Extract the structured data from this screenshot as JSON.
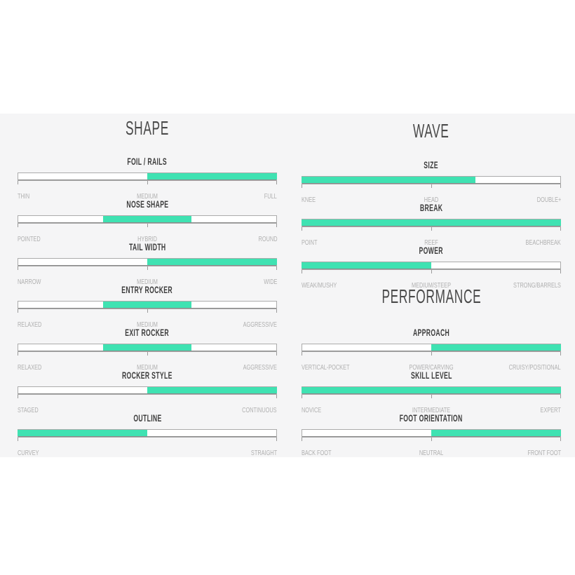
{
  "colors": {
    "accent_fill": "#3fe2b2",
    "bar_outline": "#ababab",
    "bar_bottom_edge": "#8a8a8a",
    "band_background": "#f5f5f6",
    "page_background": "#ffffff",
    "heading_text": "#4a4a4a",
    "slider_title_text": "#3d3d3d",
    "scale_label_text": "#b0b0b0"
  },
  "chart_data": {
    "type": "bar",
    "legend": "none",
    "value_format": "percent of scale, [start,end]",
    "groups": [
      {
        "heading": "SHAPE",
        "sliders": [
          {
            "label": "FOIL / RAILS",
            "scale": [
              "THIN",
              "MEDIUM",
              "FULL"
            ],
            "range_pct": [
              50,
              100
            ]
          },
          {
            "label": "NOSE SHAPE",
            "scale": [
              "POINTED",
              "HYBRID",
              "ROUND"
            ],
            "range_pct": [
              33,
              67
            ]
          },
          {
            "label": "TAIL WIDTH",
            "scale": [
              "NARROW",
              "MEDIUM",
              "WIDE"
            ],
            "range_pct": [
              50,
              100
            ]
          },
          {
            "label": "ENTRY ROCKER",
            "scale": [
              "RELAXED",
              "MEDIUM",
              "AGGRESSIVE"
            ],
            "range_pct": [
              33,
              67
            ]
          },
          {
            "label": "EXIT ROCKER",
            "scale": [
              "RELAXED",
              "MEDIUM",
              "AGGRESSIVE"
            ],
            "range_pct": [
              33,
              67
            ]
          },
          {
            "label": "ROCKER STYLE",
            "scale": [
              "STAGED",
              "CONTINUOUS"
            ],
            "range_pct": [
              50,
              100
            ]
          },
          {
            "label": "OUTLINE",
            "scale": [
              "CURVEY",
              "STRAIGHT"
            ],
            "range_pct": [
              0,
              50
            ]
          }
        ]
      },
      {
        "heading": "WAVE",
        "sliders": [
          {
            "label": "SIZE",
            "scale": [
              "KNEE",
              "HEAD",
              "DOUBLE+"
            ],
            "range_pct": [
              0,
              67
            ]
          },
          {
            "label": "BREAK",
            "scale": [
              "POINT",
              "REEF",
              "BEACHBREAK"
            ],
            "range_pct": [
              0,
              100
            ]
          },
          {
            "label": "POWER",
            "scale": [
              "WEAK/MUSHY",
              "MEDIUM/STEEP",
              "STRONG/BARRELS"
            ],
            "range_pct": [
              0,
              50
            ]
          }
        ]
      },
      {
        "heading": "PERFORMANCE",
        "sliders": [
          {
            "label": "APPROACH",
            "scale": [
              "VERTICAL-POCKET",
              "POWER/CARVING",
              "CRUISY/POSITIONAL"
            ],
            "range_pct": [
              50,
              100
            ]
          },
          {
            "label": "SKILL LEVEL",
            "scale": [
              "NOVICE",
              "INTERMEDIATE",
              "EXPERT"
            ],
            "range_pct": [
              0,
              100
            ]
          },
          {
            "label": "FOOT ORIENTATION",
            "scale": [
              "BACK FOOT",
              "NEUTRAL",
              "FRONT FOOT"
            ],
            "range_pct": [
              50,
              100
            ]
          }
        ]
      }
    ]
  }
}
